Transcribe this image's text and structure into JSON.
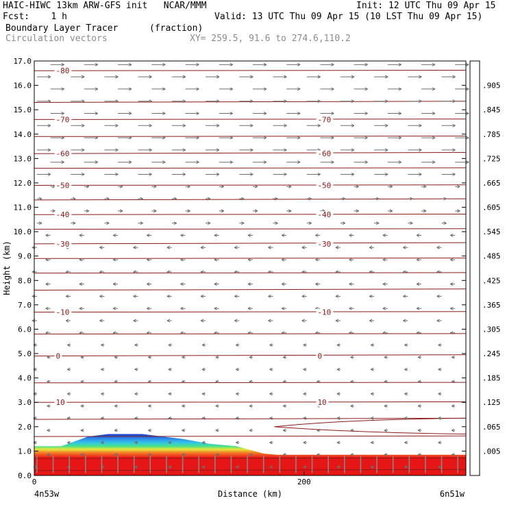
{
  "header": {
    "line1_left": "HAIC-HIWC 13km ARW-GFS init   NCAR/MMM",
    "line1_right": "Init: 12 UTC Thu 09 Apr 15",
    "line2_left": "Fcst:    1 h",
    "line2_right": "Valid: 13 UTC Thu 09 Apr 15 (10 LST Thu 09 Apr 15)",
    "line3_left": "Boundary Layer Tracer",
    "line3_units": "(fraction)",
    "line4_left": "Circulation vectors",
    "line4_xy": "XY= 259.5, 91.6 to 274.6,110.2"
  },
  "chart_data": {
    "type": "cross-section",
    "ylabel": "Height (km)",
    "xlabel": "Distance (km)",
    "x_start_label": "4n53w",
    "x_end_label": "6n51w",
    "xlim": [
      0,
      320
    ],
    "ylim": [
      0,
      17
    ],
    "x_ticks": [
      {
        "value": 0,
        "label": "0"
      },
      {
        "value": 200,
        "label": "200"
      }
    ],
    "y_ticks": [
      "0.0",
      "1.0",
      "2.0",
      "3.0",
      "4.0",
      "5.0",
      "6.0",
      "7.0",
      "8.0",
      "9.0",
      "10.0",
      "11.0",
      "12.0",
      "13.0",
      "14.0",
      "15.0",
      "16.0",
      "17.0"
    ],
    "temperature_contours": [
      {
        "label": "10",
        "height": 3.0,
        "label_x": [
          16,
          210
        ]
      },
      {
        "label": "0",
        "height": 4.9,
        "label_x": [
          16,
          210
        ]
      },
      {
        "label": "-10",
        "height": 6.7,
        "label_x": [
          16,
          210
        ]
      },
      {
        "label": "-30",
        "height": 9.5,
        "label_x": [
          16,
          210
        ]
      },
      {
        "label": "-40",
        "height": 10.7,
        "label_x": [
          16,
          210
        ]
      },
      {
        "label": "-50",
        "height": 11.9,
        "label_x": [
          16,
          210
        ]
      },
      {
        "label": "-60",
        "height": 13.2,
        "label_x": [
          16,
          210
        ]
      },
      {
        "label": "-70",
        "height": 14.6,
        "label_x": [
          16,
          210
        ]
      },
      {
        "label": "-80",
        "height": 16.6,
        "label_x": [
          16
        ]
      }
    ],
    "contour_heights": [
      0.2,
      0.7,
      1.6,
      2.3,
      3.0,
      3.8,
      4.9,
      5.8,
      6.7,
      7.6,
      8.3,
      8.9,
      9.5,
      10.1,
      10.7,
      11.3,
      11.9,
      12.6,
      13.2,
      13.9,
      14.6,
      15.3,
      16.6
    ],
    "tracer_top_height": [
      [
        0,
        1.2
      ],
      [
        20,
        1.2
      ],
      [
        30,
        1.4
      ],
      [
        40,
        1.6
      ],
      [
        55,
        1.7
      ],
      [
        80,
        1.7
      ],
      [
        95,
        1.6
      ],
      [
        110,
        1.5
      ],
      [
        130,
        1.3
      ],
      [
        150,
        1.2
      ],
      [
        170,
        0.9
      ],
      [
        180,
        0.85
      ],
      [
        320,
        0.85
      ]
    ],
    "colorbar": {
      "labels": [
        ".005",
        ".065",
        ".125",
        ".185",
        ".245",
        ".305",
        ".365",
        ".425",
        ".485",
        ".545",
        ".605",
        ".665",
        ".725",
        ".785",
        ".845",
        ".905"
      ],
      "colors": [
        "#ffffff",
        "#1a3ccd",
        "#2e8fe8",
        "#33c4e8",
        "#3ee0c4",
        "#46e08c",
        "#38d640",
        "#7ce03a",
        "#b4e63a",
        "#e6e63a",
        "#f5c838",
        "#f5a030",
        "#f57e28",
        "#f05a24",
        "#e83a20",
        "#e01e1e",
        "#e61616"
      ]
    },
    "wind_vectors": {
      "description_free": true,
      "layers": [
        {
          "y_min": 12.0,
          "y_max": 17.0,
          "direction": "east",
          "strength": "strong"
        },
        {
          "y_min": 10.0,
          "y_max": 12.0,
          "direction": "east",
          "strength": "weak"
        },
        {
          "y_min": 5.5,
          "y_max": 10.0,
          "direction": "west",
          "strength": "weak"
        },
        {
          "y_min": 0.0,
          "y_max": 5.5,
          "direction": "west",
          "strength": "light"
        }
      ]
    }
  }
}
